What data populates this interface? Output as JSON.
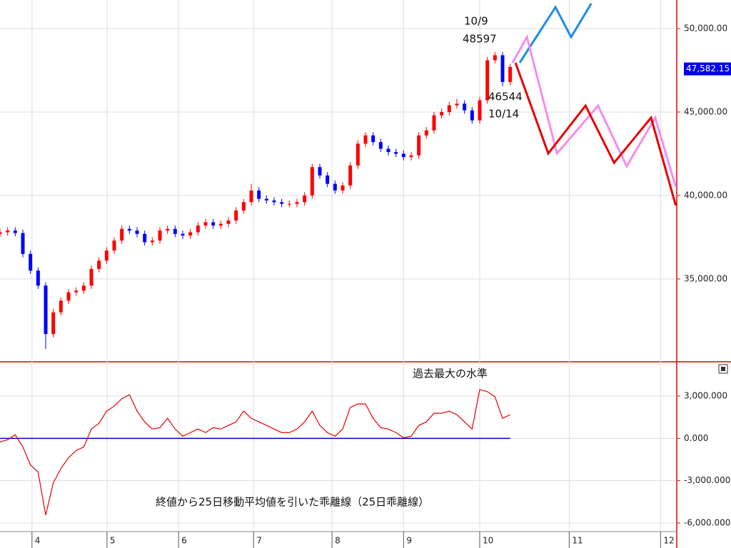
{
  "chart_data": [
    {
      "type": "candlestick",
      "x": [
        0,
        2,
        4,
        6,
        8,
        10,
        12,
        14,
        16,
        18,
        20,
        22,
        24,
        26,
        28,
        30,
        32,
        34,
        36,
        38,
        40,
        42,
        44,
        46,
        48,
        50,
        52,
        54,
        56,
        58,
        60,
        62,
        64,
        66,
        68,
        70,
        72,
        74,
        76,
        78,
        80,
        82,
        84,
        86,
        88,
        90,
        92,
        94,
        96,
        98,
        100,
        102,
        104,
        106,
        108,
        110,
        112,
        114,
        116,
        118,
        120,
        122,
        124,
        126,
        128,
        130,
        132,
        134
      ],
      "open": [
        37700,
        37800,
        37900,
        37750,
        36500,
        35500,
        34600,
        31700,
        33000,
        33700,
        34200,
        34300,
        34600,
        35600,
        36100,
        36700,
        37300,
        38000,
        37900,
        37700,
        37200,
        37300,
        37900,
        38000,
        37700,
        37600,
        37800,
        38200,
        38400,
        38200,
        38300,
        38500,
        39100,
        39600,
        40300,
        39800,
        39700,
        39600,
        39500,
        39500,
        39600,
        40000,
        41700,
        41200,
        40700,
        40300,
        40600,
        41800,
        43100,
        43600,
        43200,
        42800,
        42600,
        42500,
        42300,
        42400,
        43600,
        43900,
        44800,
        45000,
        45400,
        45500,
        45100,
        44500,
        45700,
        48100,
        48400,
        46800
      ],
      "high": [
        38000,
        38100,
        38100,
        37950,
        36700,
        35700,
        34800,
        33200,
        33900,
        34400,
        34500,
        34800,
        35800,
        36300,
        36900,
        37500,
        38200,
        38200,
        38100,
        37900,
        37500,
        38100,
        38200,
        38200,
        37900,
        38000,
        38400,
        38600,
        38600,
        38500,
        38700,
        39300,
        39800,
        40700,
        40500,
        40000,
        39900,
        39800,
        39700,
        39800,
        40200,
        41900,
        41900,
        41400,
        40900,
        40800,
        42000,
        43300,
        43800,
        43800,
        43400,
        43000,
        42800,
        42700,
        42600,
        43800,
        44100,
        45000,
        45200,
        45600,
        45800,
        45700,
        45300,
        45900,
        48300,
        48597,
        48600,
        47900
      ],
      "low": [
        37500,
        37600,
        37550,
        36300,
        35300,
        34400,
        30800,
        31500,
        32800,
        33500,
        34000,
        34100,
        34400,
        35400,
        35900,
        36500,
        37100,
        37700,
        37500,
        37000,
        37000,
        37100,
        37700,
        37500,
        37400,
        37400,
        37600,
        38000,
        38000,
        38000,
        38100,
        38300,
        38900,
        39400,
        39600,
        39500,
        39400,
        39300,
        39300,
        39300,
        39400,
        39800,
        41000,
        40500,
        40100,
        40100,
        40400,
        41600,
        42900,
        43000,
        42600,
        42400,
        42300,
        42100,
        42100,
        42200,
        43400,
        43700,
        44600,
        44800,
        45200,
        44900,
        44300,
        44300,
        45500,
        47900,
        46544,
        46600
      ],
      "close": [
        37800,
        37900,
        37750,
        36500,
        35500,
        34600,
        31700,
        33000,
        33700,
        34200,
        34300,
        34600,
        35600,
        36100,
        36700,
        37300,
        38000,
        37900,
        37700,
        37200,
        37300,
        37900,
        38000,
        37700,
        37600,
        37800,
        38200,
        38400,
        38200,
        38300,
        38500,
        39100,
        39600,
        40300,
        39800,
        39700,
        39600,
        39500,
        39500,
        39600,
        40000,
        41700,
        41200,
        40700,
        40300,
        40600,
        41800,
        43100,
        43600,
        43200,
        42800,
        42600,
        42500,
        42300,
        42400,
        43600,
        43900,
        44800,
        45000,
        45400,
        45500,
        45100,
        44500,
        45700,
        48100,
        48400,
        46800,
        47700
      ],
      "up_color": "#ff0000",
      "down_color": "#0000ff",
      "series": [
        {
          "color": "#1e8ce8",
          "x": [
            136.5,
            145.9,
            150,
            155.3
          ],
          "values": [
            47950,
            51280,
            49490,
            51500
          ]
        },
        {
          "color": "#f58cf0",
          "x": [
            134.6,
            138.4,
            146.3,
            157.1,
            164.6,
            172.1,
            177.5
          ],
          "values": [
            47950,
            49490,
            42520,
            45380,
            41750,
            44660,
            40510
          ]
        },
        {
          "color": "#e60000",
          "x": [
            135.4,
            144,
            153.8,
            161.3,
            171,
            177.5
          ],
          "values": [
            47950,
            42520,
            45380,
            41960,
            44660,
            39400
          ]
        }
      ],
      "xlim": [
        0,
        177.75
      ],
      "ylim": [
        30040,
        51710
      ],
      "yticks": [
        {
          "value": 50000,
          "label": "50,000.00"
        },
        {
          "value": 45000,
          "label": "45,000.00"
        },
        {
          "value": 40000,
          "label": "40,000.00"
        },
        {
          "value": 35000,
          "label": "35,000.00"
        }
      ],
      "last_price": {
        "value": 47582.15,
        "label": "47,582.15"
      },
      "annotations": [
        "10/9",
        "48597",
        "46544",
        "10/14"
      ],
      "grid": true
    },
    {
      "type": "line",
      "title": "過去最大の水準",
      "subtitle": "終値から25日移動平均値を引いた乖離線（25日乖離線）",
      "x": [
        0,
        2,
        4,
        6,
        8,
        10,
        12,
        14,
        16,
        18,
        20,
        22,
        24,
        26,
        28,
        30,
        32,
        34,
        36,
        38,
        40,
        42,
        44,
        46,
        48,
        50,
        52,
        54,
        56,
        58,
        60,
        62,
        64,
        66,
        68,
        70,
        72,
        74,
        76,
        78,
        80,
        82,
        84,
        86,
        88,
        90,
        92,
        94,
        96,
        98,
        100,
        102,
        104,
        106,
        108,
        110,
        112,
        114,
        116,
        118,
        120,
        122,
        124,
        126,
        128,
        130,
        132,
        134
      ],
      "series": [
        {
          "color": "#e60000",
          "values": [
            -250,
            -100,
            250,
            -600,
            -1880,
            -2390,
            -5440,
            -3150,
            -2140,
            -1370,
            -860,
            -610,
            660,
            1070,
            1930,
            2290,
            2800,
            3100,
            1930,
            1170,
            660,
            760,
            1420,
            660,
            150,
            410,
            660,
            410,
            760,
            660,
            920,
            1170,
            1930,
            1420,
            1170,
            920,
            660,
            410,
            410,
            660,
            1170,
            1930,
            920,
            410,
            150,
            660,
            2190,
            2440,
            2440,
            1420,
            760,
            660,
            410,
            50,
            150,
            920,
            1170,
            1780,
            1780,
            1930,
            1680,
            1170,
            660,
            3460,
            3310,
            2950,
            1420,
            1680
          ]
        }
      ],
      "zero_line": 0,
      "zero_line_color": "#0000c0",
      "xlim": [
        0,
        177.75
      ],
      "ylim": [
        -6610,
        5430
      ],
      "yticks": [
        {
          "value": 3000,
          "label": "3,000.000"
        },
        {
          "value": 0,
          "label": "0.000"
        },
        {
          "value": -3000,
          "label": "-3,000.000"
        },
        {
          "value": -6000,
          "label": "-6,000.000"
        }
      ],
      "xticks": [
        {
          "value": 8.4,
          "label": "4"
        },
        {
          "value": 28.1,
          "label": "5"
        },
        {
          "value": 46.9,
          "label": "6"
        },
        {
          "value": 66.6,
          "label": "7"
        },
        {
          "value": 87.2,
          "label": "8"
        },
        {
          "value": 106,
          "label": "9"
        },
        {
          "value": 126,
          "label": "10"
        },
        {
          "value": 149.5,
          "label": "11"
        },
        {
          "value": 173.5,
          "label": "12"
        }
      ],
      "grid": true
    }
  ]
}
